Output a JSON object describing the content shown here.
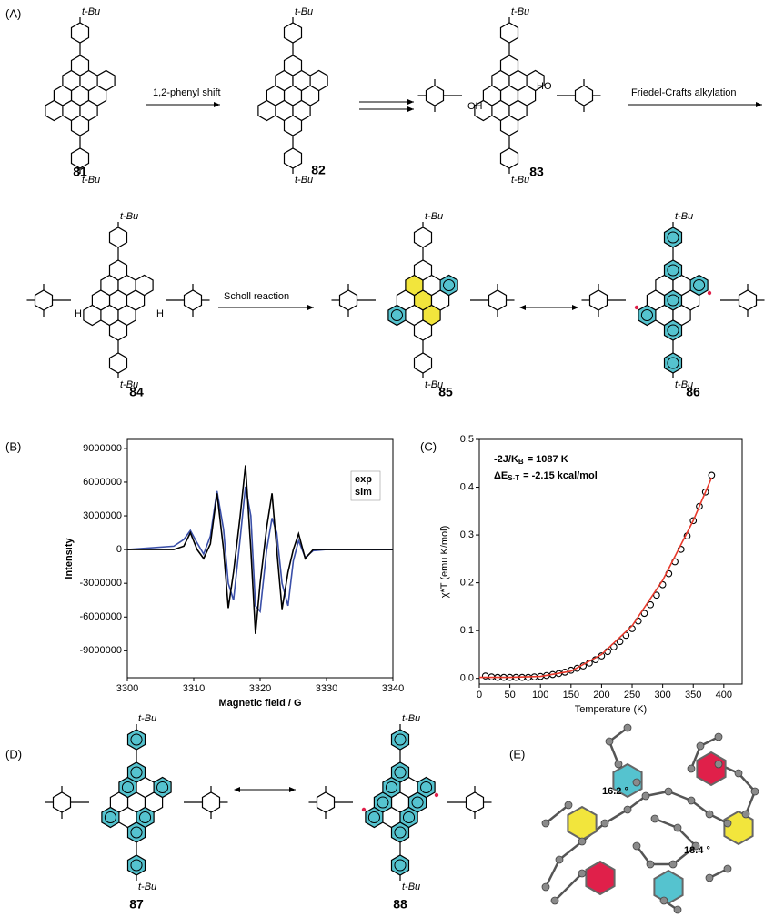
{
  "panels": [
    "(A)",
    "(B)",
    "(C)",
    "(D)",
    "(E)"
  ],
  "compounds": [
    "81",
    "82",
    "83",
    "84",
    "85",
    "86",
    "87",
    "88"
  ],
  "reactions": [
    "1,2-phenyl shift",
    "Friedel-Crafts alkylation",
    "Scholl reaction"
  ],
  "substituents": [
    "t-Bu",
    "t-Bu",
    "t-Bu",
    "t-Bu",
    "t-Bu",
    "t-Bu",
    "t-Bu",
    "t-Bu",
    "t-Bu",
    "t-Bu",
    "t-Bu",
    "t-Bu",
    "t-Bu",
    "t-Bu",
    "t-Bu",
    "t-Bu",
    "OH",
    "HO",
    "H",
    "H"
  ],
  "angles": [
    "16.2 °",
    "18.4 °"
  ],
  "chart_data": [
    {
      "type": "line",
      "xlabel": "Magnetic field / G",
      "ylabel": "Intensity",
      "xlim": [
        3300,
        3340
      ],
      "xticks": [
        3300,
        3310,
        3320,
        3330,
        3340
      ],
      "ylim": [
        -11400000,
        9800000
      ],
      "yticks": [
        9000000,
        6000000,
        3000000,
        0,
        -3000000,
        -6000000,
        -9000000
      ],
      "legend": "upper right",
      "x": [
        3300,
        3307,
        3308.5,
        3309.5,
        3310.5,
        3311.5,
        3312.5,
        3313.5,
        3314.5,
        3315.2,
        3316,
        3317,
        3317.8,
        3318.6,
        3319.3,
        3320,
        3321,
        3321.8,
        3322.5,
        3323.3,
        3324.2,
        3325,
        3325.8,
        3326.8,
        3328,
        3330,
        3340
      ],
      "series": [
        {
          "name": "exp",
          "color": "#3a4fa8",
          "values": [
            0,
            300000,
            900000,
            1700000,
            600000,
            -400000,
            1200000,
            5200000,
            1800000,
            -3000000,
            -4500000,
            1000000,
            5600000,
            3000000,
            -5000000,
            -5500000,
            0,
            2800000,
            1500000,
            -3000000,
            -5000000,
            -1000000,
            800000,
            -700000,
            -100000,
            0,
            0
          ]
        },
        {
          "name": "sim",
          "color": "#000000",
          "values": [
            0,
            0,
            300000,
            1500000,
            0,
            -800000,
            500000,
            5000000,
            0,
            -5200000,
            -2000000,
            3000000,
            7500000,
            0,
            -7500000,
            -3000000,
            2000000,
            5000000,
            0,
            -5300000,
            -2000000,
            0,
            1400000,
            -800000,
            0,
            0,
            0
          ]
        }
      ]
    },
    {
      "type": "scatter",
      "xlabel": "Temperature (K)",
      "ylabel": "χ*T (emu K/mol)",
      "xlim": [
        0,
        430
      ],
      "xticks": [
        0,
        50,
        100,
        150,
        200,
        250,
        300,
        350,
        400
      ],
      "ylim": [
        -0.012,
        0.5
      ],
      "yticks": [
        {
          "value": 0,
          "label": "0,0"
        },
        {
          "value": 0.1,
          "label": "0,1"
        },
        {
          "value": 0.2,
          "label": "0,2"
        },
        {
          "value": 0.3,
          "label": "0,3"
        },
        {
          "value": 0.4,
          "label": "0,4"
        },
        {
          "value": 0.5,
          "label": "0,5"
        }
      ],
      "annotations": [
        {
          "text": "-2J/K",
          "sub": "B",
          "after": "= 1087 K"
        },
        {
          "text": "ΔE",
          "sub": "S-T",
          "after": "= -2.15 kcal/mol"
        }
      ],
      "series": [
        {
          "color": "#000000",
          "x": [
            10,
            20,
            30,
            40,
            50,
            60,
            70,
            80,
            90,
            100,
            110,
            120,
            130,
            140,
            150,
            160,
            170,
            180,
            190,
            200,
            210,
            220,
            230,
            240,
            250,
            260,
            270,
            280,
            290,
            300,
            310,
            320,
            330,
            340,
            350,
            360,
            370,
            380
          ],
          "values": [
            0.005,
            0.003,
            0.002,
            0.002,
            0.002,
            0.002,
            0.002,
            0.002,
            0.003,
            0.004,
            0.006,
            0.008,
            0.01,
            0.013,
            0.017,
            0.021,
            0.026,
            0.032,
            0.039,
            0.047,
            0.056,
            0.066,
            0.077,
            0.09,
            0.104,
            0.12,
            0.136,
            0.154,
            0.174,
            0.196,
            0.219,
            0.244,
            0.27,
            0.298,
            0.33,
            0.36,
            0.39,
            0.425
          ]
        },
        {
          "type": "line",
          "color": "#e8392b",
          "x": [
            0,
            50,
            100,
            150,
            200,
            250,
            300,
            350,
            380
          ],
          "values": [
            0.002,
            0.002,
            0.004,
            0.015,
            0.05,
            0.11,
            0.205,
            0.33,
            0.42
          ]
        }
      ]
    }
  ]
}
